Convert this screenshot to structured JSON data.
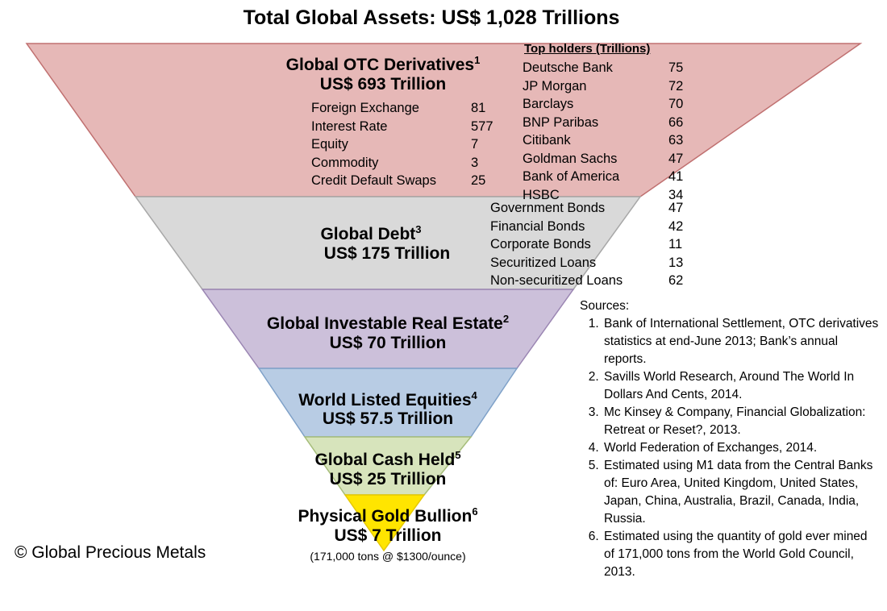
{
  "title": "Total Global Assets: US$ 1,028 Trillions",
  "colors": {
    "otc": "#e6b8b7",
    "debt": "#d9d9d9",
    "real_estate": "#ccc0da",
    "equities": "#b8cce4",
    "cash": "#d7e4bc",
    "gold": "#ffe500"
  },
  "bands": {
    "otc": {
      "title": "Global OTC Derivatives",
      "sup": "1",
      "value": "US$ 693 Trillion",
      "items": [
        {
          "label": "Foreign Exchange",
          "value": "81"
        },
        {
          "label": "Interest Rate",
          "value": "577"
        },
        {
          "label": "Equity",
          "value": "7"
        },
        {
          "label": "Commodity",
          "value": "3"
        },
        {
          "label": "Credit Default Swaps",
          "value": "25"
        }
      ],
      "holders_title": "Top holders (Trillions)",
      "holders": [
        {
          "label": "Deutsche Bank",
          "value": "75"
        },
        {
          "label": "JP Morgan",
          "value": "72"
        },
        {
          "label": "Barclays",
          "value": "70"
        },
        {
          "label": "BNP Paribas",
          "value": "66"
        },
        {
          "label": "Citibank",
          "value": "63"
        },
        {
          "label": "Goldman Sachs",
          "value": "47"
        },
        {
          "label": "Bank of America",
          "value": "41"
        },
        {
          "label": "HSBC",
          "value": "34"
        }
      ]
    },
    "debt": {
      "title": "Global Debt",
      "sup": "3",
      "value": "US$ 175 Trillion",
      "items": [
        {
          "label": "Government Bonds",
          "value": "47"
        },
        {
          "label": "Financial Bonds",
          "value": "42"
        },
        {
          "label": "Corporate Bonds",
          "value": "11"
        },
        {
          "label": "Securitized Loans",
          "value": "13"
        },
        {
          "label": "Non-securitized Loans",
          "value": "62"
        }
      ]
    },
    "real_estate": {
      "title": "Global Investable Real Estate",
      "sup": "2",
      "value": "US$ 70 Trillion"
    },
    "equities": {
      "title": "World Listed Equities",
      "sup": "4",
      "value": "US$ 57.5 Trillion"
    },
    "cash": {
      "title": "Global Cash Held",
      "sup": "5",
      "value": "US$ 25 Trillion"
    },
    "gold": {
      "title": "Physical Gold Bullion",
      "sup": "6",
      "value": "US$ 7 Trillion",
      "note": "(171,000 tons @ $1300/ounce)"
    }
  },
  "sources": {
    "heading": "Sources:",
    "items": [
      "Bank of International Settlement, OTC derivatives statistics at end-June 2013; Bank’s annual reports.",
      "Savills World Research, Around The World In Dollars And Cents, 2014.",
      "Mc Kinsey & Company, Financial Globalization: Retreat or Reset?, 2013.",
      "World Federation of Exchanges, 2014.",
      "Estimated using M1 data from the Central Banks of: Euro Area, United Kingdom, United States, Japan, China, Australia, Brazil, Canada, India, Russia.",
      "Estimated using the quantity of gold ever mined of 171,000 tons from the World Gold Council, 2013."
    ]
  },
  "copyright": "© Global Precious Metals"
}
